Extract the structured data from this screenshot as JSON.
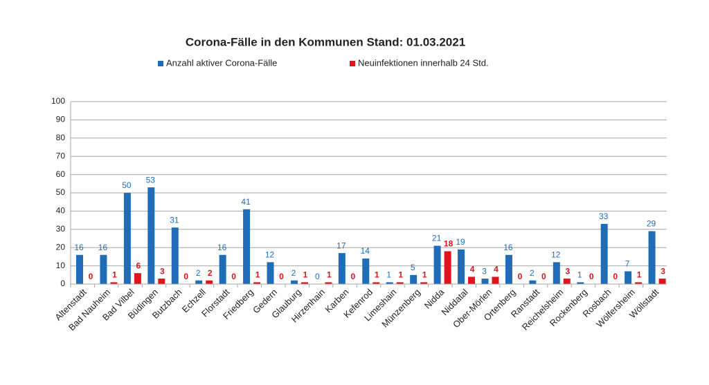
{
  "chart_data": {
    "type": "bar",
    "title": "Corona-Fälle in den Kommunen Stand: 01.03.2021",
    "categories": [
      "Altenstadt",
      "Bad Nauheim",
      "Bad Vilbel",
      "Büdingen",
      "Butzbach",
      "Echzell",
      "Florstadt",
      "Friedberg",
      "Gedern",
      "Glauburg",
      "Hirzenhain",
      "Karben",
      "Kefenrod",
      "Limeshain",
      "Münzenberg",
      "Nidda",
      "Niddatal",
      "Ober-Mörlen",
      "Ortenberg",
      "Ranstadt",
      "Reichelsheim",
      "Rockenberg",
      "Rosbach",
      "Wölfersheim",
      "Wöllstadt"
    ],
    "series": [
      {
        "name": "Anzahl aktiver Corona-Fälle",
        "color": "#1f6cb8",
        "values": [
          16,
          16,
          50,
          53,
          31,
          2,
          16,
          41,
          12,
          2,
          0,
          17,
          14,
          1,
          5,
          21,
          19,
          3,
          16,
          2,
          12,
          1,
          33,
          7,
          29
        ]
      },
      {
        "name": "Neuinfektionen innerhalb 24 Std.",
        "color": "#e0141c",
        "values": [
          0,
          1,
          6,
          3,
          0,
          2,
          0,
          1,
          0,
          1,
          1,
          0,
          1,
          1,
          1,
          18,
          4,
          4,
          0,
          0,
          3,
          0,
          0,
          1,
          3
        ]
      }
    ],
    "ylim": [
      0,
      100
    ],
    "yticks": [
      0,
      10,
      20,
      30,
      40,
      50,
      60,
      70,
      80,
      90,
      100
    ],
    "grid": true
  }
}
